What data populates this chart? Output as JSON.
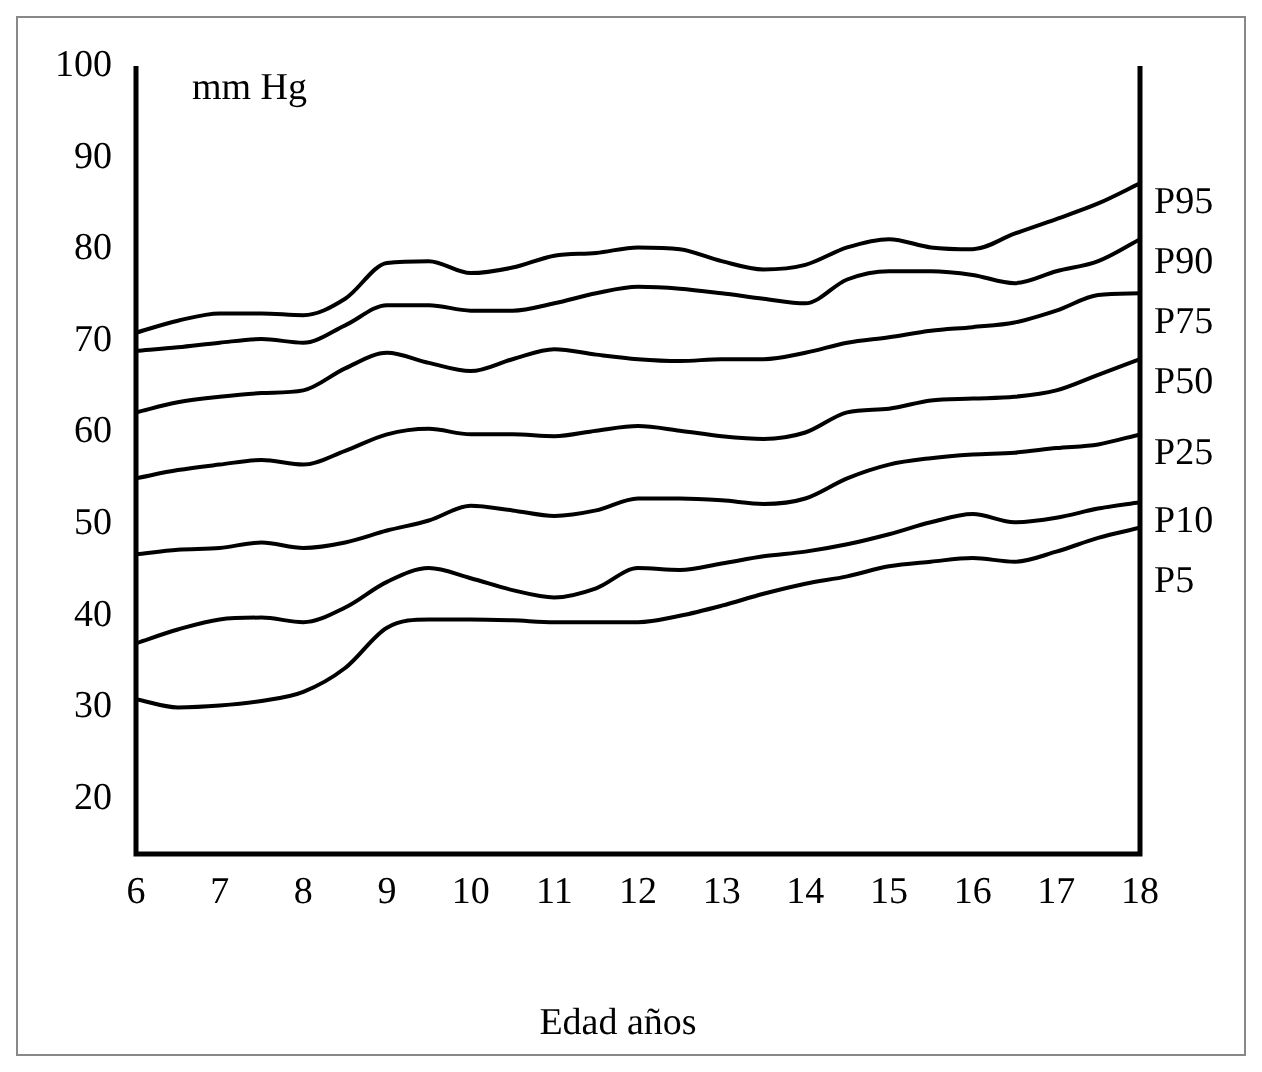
{
  "chart_data": {
    "type": "line",
    "xlabel": "Edad años",
    "ylabel": "mm Hg",
    "x": [
      6,
      6.5,
      7,
      7.5,
      8,
      8.5,
      9,
      9.5,
      10,
      10.5,
      11,
      11.5,
      12,
      12.5,
      13,
      13.5,
      14,
      14.5,
      15,
      15.5,
      16,
      16.5,
      17,
      17.5,
      18
    ],
    "series": [
      {
        "name": "P95",
        "color": "#000000",
        "values": [
          70.9,
          72.2,
          73,
          73,
          72.8,
          74.6,
          78.5,
          78.7,
          77.4,
          78,
          79.3,
          79.6,
          80.2,
          80,
          78.7,
          77.8,
          78.3,
          80.2,
          81.1,
          80.2,
          80,
          81.7,
          83.3,
          85,
          87.2
        ]
      },
      {
        "name": "P90",
        "color": "#000000",
        "values": [
          68.9,
          69.3,
          69.8,
          70.2,
          69.8,
          71.7,
          73.9,
          73.9,
          73.3,
          73.3,
          74.1,
          75.2,
          75.9,
          75.7,
          75.2,
          74.6,
          74.1,
          76.7,
          77.6,
          77.6,
          77.2,
          76.3,
          77.6,
          78.7,
          81.1
        ]
      },
      {
        "name": "P75",
        "color": "#000000",
        "values": [
          62.2,
          63.3,
          63.9,
          64.3,
          64.6,
          67,
          68.7,
          67.6,
          66.7,
          68,
          69.1,
          68.5,
          68,
          67.8,
          68,
          68,
          68.7,
          69.8,
          70.4,
          71.1,
          71.5,
          72,
          73.3,
          75,
          75.2
        ]
      },
      {
        "name": "P50",
        "color": "#000000",
        "values": [
          55,
          55.9,
          56.5,
          57,
          56.5,
          58,
          59.8,
          60.4,
          59.8,
          59.8,
          59.6,
          60.2,
          60.7,
          60.2,
          59.6,
          59.3,
          60,
          62.2,
          62.6,
          63.5,
          63.7,
          63.9,
          64.6,
          66.3,
          68
        ]
      },
      {
        "name": "P25",
        "color": "#000000",
        "values": [
          46.7,
          47.2,
          47.4,
          48,
          47.4,
          48,
          49.3,
          50.4,
          52,
          51.5,
          50.9,
          51.5,
          52.8,
          52.8,
          52.6,
          52.2,
          52.8,
          55,
          56.5,
          57.2,
          57.6,
          57.8,
          58.3,
          58.7,
          59.8
        ]
      },
      {
        "name": "P10",
        "color": "#000000",
        "values": [
          37,
          38.5,
          39.6,
          39.8,
          39.3,
          40.9,
          43.7,
          45.2,
          44.1,
          42.8,
          42,
          43,
          45.2,
          45,
          45.7,
          46.5,
          47,
          47.8,
          48.9,
          50.2,
          51.1,
          50.2,
          50.7,
          51.7,
          52.4
        ]
      },
      {
        "name": "P5",
        "color": "#000000",
        "values": [
          30.9,
          30,
          30.2,
          30.7,
          31.7,
          34.3,
          38.7,
          39.6,
          39.6,
          39.5,
          39.3,
          39.3,
          39.3,
          40,
          41.1,
          42.4,
          43.5,
          44.3,
          45.4,
          45.9,
          46.3,
          45.9,
          47,
          48.5,
          49.6
        ]
      }
    ],
    "xlim": [
      6,
      18
    ],
    "xticks": [
      6,
      7,
      8,
      9,
      10,
      11,
      12,
      13,
      14,
      15,
      16,
      17,
      18
    ],
    "ylim": [
      14,
      100
    ],
    "yticks": [
      20,
      30,
      40,
      50,
      60,
      70,
      80,
      90,
      100
    ],
    "grid": false,
    "legend": false,
    "marker": "none",
    "line_style": "solid"
  }
}
